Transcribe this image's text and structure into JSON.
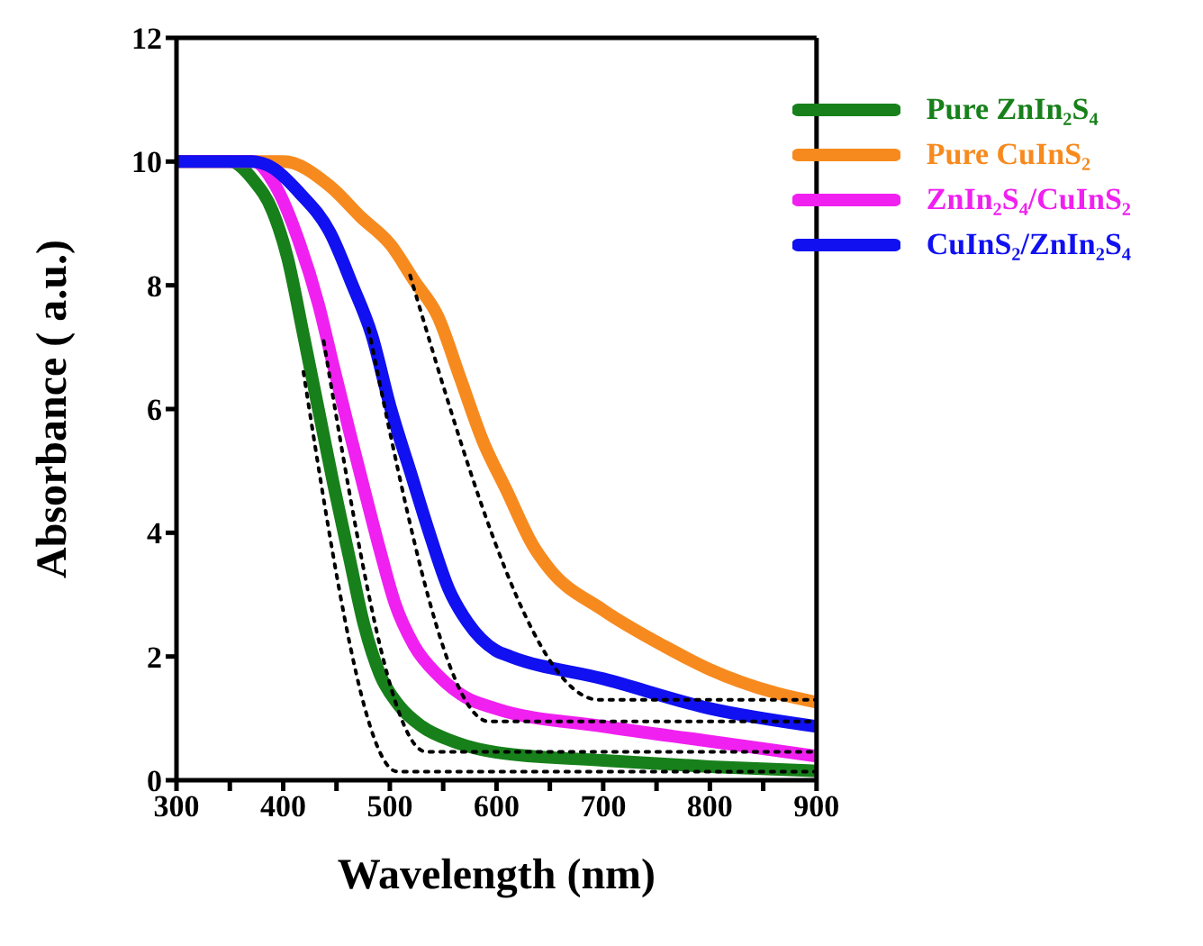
{
  "chart_data": {
    "type": "line",
    "xlabel": "Wavelength (nm)",
    "ylabel": "Absorbance ( a.u.)",
    "xlim": [
      300,
      900
    ],
    "ylim": [
      0,
      12
    ],
    "xticks": [
      300,
      {
        "value": 350,
        "label": null
      },
      400,
      {
        "value": 450,
        "label": null
      },
      500,
      {
        "value": 550,
        "label": null
      },
      600,
      {
        "value": 650,
        "label": null
      },
      700,
      {
        "value": 750,
        "label": null
      },
      800,
      {
        "value": 850,
        "label": null
      },
      900
    ],
    "yticks": [
      0,
      2,
      4,
      6,
      8,
      10,
      12
    ],
    "grid": false,
    "legend": "top right",
    "line_style": "solid",
    "marker": "none",
    "series": [
      {
        "name": "Pure ZnIn₂S₄",
        "color": "#17801a",
        "x": [
          300,
          350,
          372,
          390,
          404,
          419,
          433,
          447,
          462,
          476,
          491,
          509,
          530,
          559,
          600,
          700,
          800,
          900
        ],
        "values": [
          10,
          10,
          9.7,
          9.2,
          8.45,
          7.2,
          6.0,
          4.8,
          3.6,
          2.5,
          1.7,
          1.2,
          0.87,
          0.63,
          0.45,
          0.32,
          0.22,
          0.15
        ]
      },
      {
        "name": "Pure CuInS₂",
        "color": "#f78a1e",
        "x": [
          300,
          400,
          444,
          473,
          501,
          523,
          545,
          566,
          588,
          609,
          634,
          649,
          700,
          757,
          800,
          864,
          900
        ],
        "values": [
          10,
          10,
          9.6,
          9.1,
          8.65,
          8.07,
          7.5,
          6.5,
          5.45,
          4.7,
          3.8,
          3.43,
          2.75,
          2.17,
          1.79,
          1.4,
          1.26
        ]
      },
      {
        "name": "ZnIn₂S₄/CuInS₂",
        "color": "#f020f0",
        "x": [
          300,
          372,
          393,
          415,
          433,
          447,
          462,
          476,
          491,
          505,
          523,
          545,
          570,
          599,
          700,
          800,
          900
        ],
        "values": [
          10,
          10,
          9.6,
          8.7,
          7.7,
          6.7,
          5.65,
          4.7,
          3.7,
          2.85,
          2.17,
          1.7,
          1.35,
          1.16,
          0.87,
          0.63,
          0.39
        ]
      },
      {
        "name": "CuInS₂/ZnIn₂S₄",
        "color": "#1010f0",
        "x": [
          300,
          370,
          390,
          415,
          444,
          465,
          483,
          501,
          519,
          537,
          555,
          573,
          599,
          613,
          700,
          800,
          900
        ],
        "values": [
          10,
          10,
          9.9,
          9.5,
          8.85,
          8.0,
          7.2,
          6.0,
          5.0,
          4.0,
          3.1,
          2.55,
          2.1,
          2.0,
          1.64,
          1.16,
          0.87
        ]
      },
      {
        "color": "#000000",
        "line_style": "dotted",
        "x": [
          419,
          507,
          900
        ],
        "values": [
          6.6,
          0.14,
          0.14
        ]
      },
      {
        "color": "#000000",
        "line_style": "dotted",
        "x": [
          438,
          534,
          900
        ],
        "values": [
          7.1,
          0.46,
          0.46
        ]
      },
      {
        "color": "#000000",
        "line_style": "dotted",
        "x": [
          480,
          593,
          900
        ],
        "values": [
          7.3,
          0.95,
          0.95
        ]
      },
      {
        "color": "#000000",
        "line_style": "dotted",
        "x": [
          519,
          696,
          900
        ],
        "values": [
          8.16,
          1.3,
          1.3
        ]
      }
    ]
  }
}
